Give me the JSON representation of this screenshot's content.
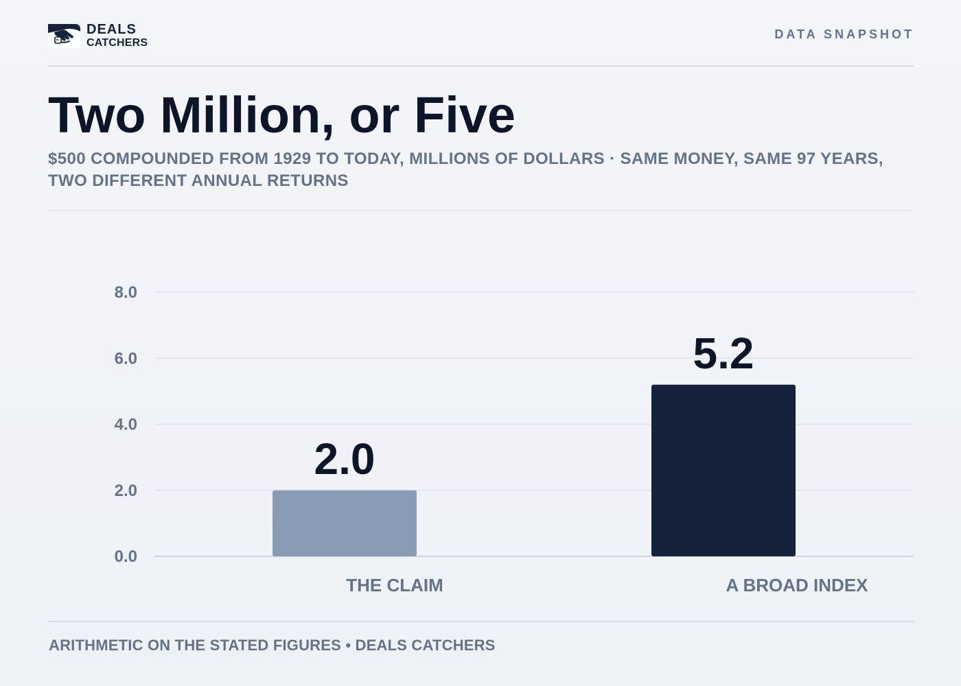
{
  "brand": {
    "line1": "DEALS",
    "line2": "CATCHERS",
    "logo_icon": "handshake-icon",
    "color": "#14223b"
  },
  "header": {
    "kicker": "DATA SNAPSHOT"
  },
  "title": "Two Million, or Five",
  "subtitle": "$500 COMPOUNDED FROM 1929 TO TODAY, MILLIONS OF DOLLARS · SAME MONEY, SAME 97 YEARS, TWO DIFFERENT ANNUAL RETURNS",
  "footer": {
    "note": "ARITHMETIC ON THE STATED FIGURES • DEALS CATCHERS"
  },
  "chart_data": {
    "type": "bar",
    "categories": [
      "THE CLAIM",
      "A BROAD INDEX"
    ],
    "values": [
      2.0,
      5.2
    ],
    "value_labels": [
      "2.0",
      "5.2"
    ],
    "colors": [
      "#8a9bb5",
      "#14223b"
    ],
    "ylim": [
      0,
      8
    ],
    "yticks": [
      "0.0",
      "2.0",
      "4.0",
      "6.0",
      "8.0"
    ],
    "grid": true,
    "legend": "none",
    "xlabel": "",
    "ylabel": ""
  }
}
